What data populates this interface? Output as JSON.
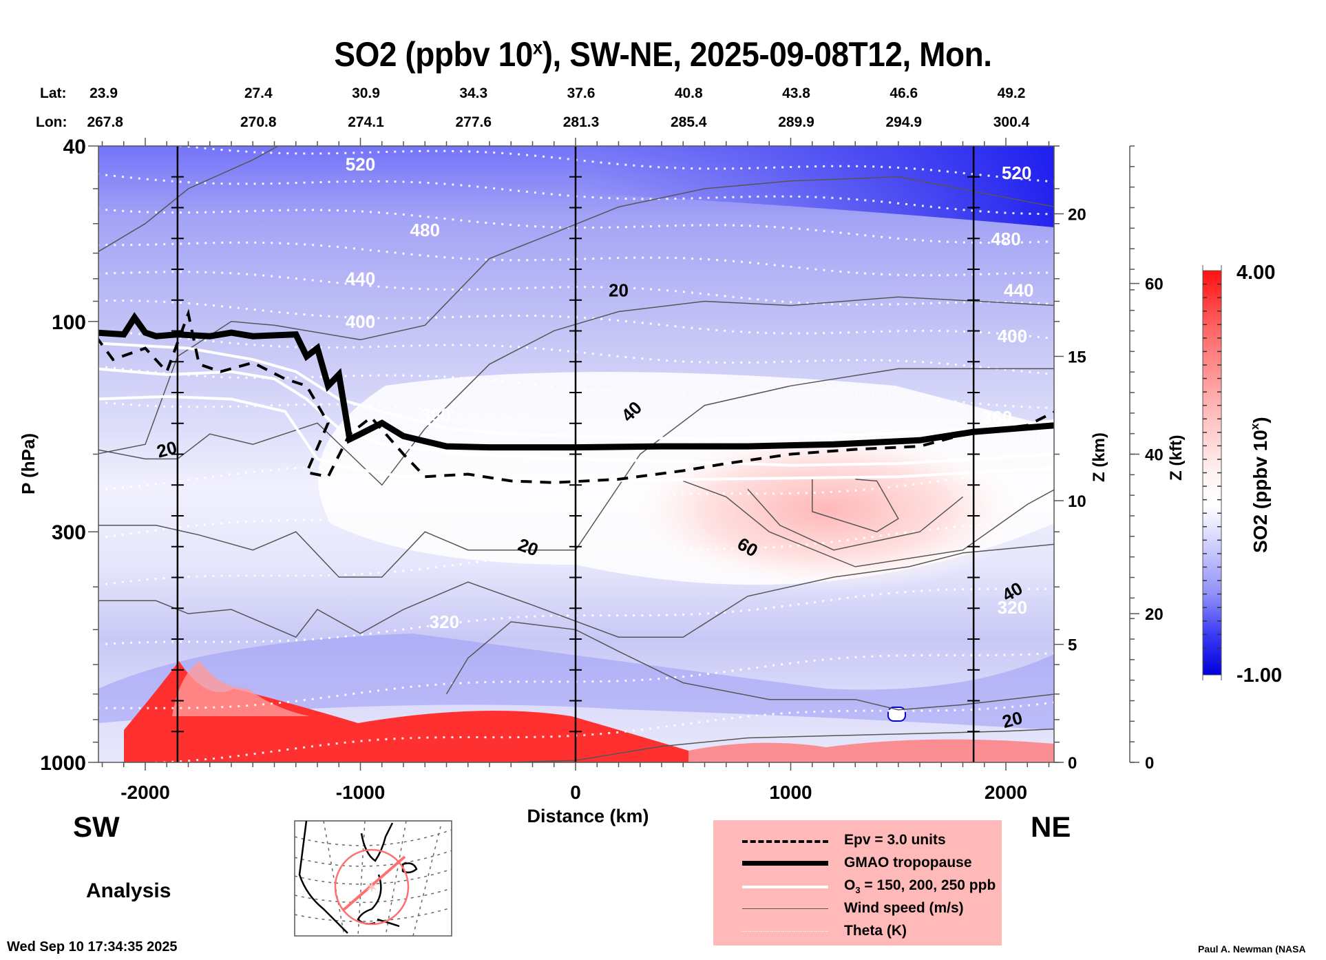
{
  "chart_data": {
    "type": "heatmap",
    "title": "SO2 (ppbv 10",
    "title_sup": "x",
    "title_rest": "), SW-NE, 2025-09-08T12, Mon.",
    "xlabel": "Distance (km)",
    "ylabel": "P (hPa)",
    "xlim": [
      -2230,
      2230
    ],
    "ylim_hpa": [
      1000,
      40
    ],
    "yscale": "log",
    "x_ticks": [
      -2000,
      -1000,
      0,
      1000,
      2000
    ],
    "x_tick_labels": [
      "-2000",
      "-1000",
      "0",
      "1000",
      "2000"
    ],
    "y_ticks": [
      40,
      100,
      300,
      1000
    ],
    "y_tick_labels": [
      "40",
      "100",
      "300",
      "1000"
    ],
    "vertical_lines_km": [
      -1850,
      0,
      1850
    ],
    "location_rows": {
      "lat_label": "Lat:",
      "lon_label": "Lon:",
      "distances_km": [
        -2000,
        -1500,
        -1000,
        -500,
        0,
        500,
        1000,
        1500,
        2000
      ],
      "lat": [
        "23.9",
        "27.4",
        "30.9",
        "34.3",
        "37.6",
        "40.8",
        "43.8",
        "46.6",
        "49.2"
      ],
      "lon": [
        "267.8",
        "270.8",
        "274.1",
        "277.6",
        "281.3",
        "285.4",
        "289.9",
        "294.9",
        "300.4"
      ]
    },
    "right_axis_km": {
      "label": "Z (km)",
      "ticks": [
        0,
        5,
        10,
        15,
        20
      ],
      "tick_pressures_hpa": [
        1000,
        540,
        255,
        120,
        57
      ]
    },
    "right_axis_kft": {
      "label": "Z (kft)",
      "ticks": [
        0,
        20,
        40,
        60
      ],
      "tick_pressures_hpa": [
        1000,
        460,
        200,
        82
      ]
    },
    "colorbar": {
      "label": "SO2 (ppbv 10",
      "label_sup": "x",
      "label_rest": ")",
      "min": -1.0,
      "max": 4.0,
      "min_label": "-1.00",
      "max_label": "4.00",
      "low_color": "#0000dd",
      "mid_color": "#ffffff",
      "high_color": "#ff1010",
      "levels": 30
    },
    "theta_labels": [
      {
        "text": "520",
        "x_km": -1000,
        "p": 44
      },
      {
        "text": "480",
        "x_km": -700,
        "p": 62
      },
      {
        "text": "440",
        "x_km": -1000,
        "p": 80
      },
      {
        "text": "400",
        "x_km": -1000,
        "p": 100
      },
      {
        "text": "360",
        "x_km": -650,
        "p": 163
      },
      {
        "text": "320",
        "x_km": -610,
        "p": 480
      },
      {
        "text": "520",
        "x_km": 2050,
        "p": 46
      },
      {
        "text": "480",
        "x_km": 2000,
        "p": 65
      },
      {
        "text": "440",
        "x_km": 2060,
        "p": 85
      },
      {
        "text": "400",
        "x_km": 2030,
        "p": 108
      },
      {
        "text": "360",
        "x_km": 1960,
        "p": 165
      },
      {
        "text": "320",
        "x_km": 2030,
        "p": 445
      }
    ],
    "wind_labels": [
      {
        "text": "20",
        "x_km": -1900,
        "p": 195,
        "rot": -15
      },
      {
        "text": "20",
        "x_km": 200,
        "p": 85,
        "rot": 0
      },
      {
        "text": "40",
        "x_km": 260,
        "p": 160,
        "rot": -45
      },
      {
        "text": "20",
        "x_km": -220,
        "p": 325,
        "rot": 20
      },
      {
        "text": "60",
        "x_km": 800,
        "p": 325,
        "rot": 30
      },
      {
        "text": "40",
        "x_km": 2030,
        "p": 410,
        "rot": -30
      },
      {
        "text": "20",
        "x_km": 2030,
        "p": 800,
        "rot": -15
      }
    ],
    "tropopause_gmao": [
      [
        -2230,
        106
      ],
      [
        -2100,
        107
      ],
      [
        -2050,
        98
      ],
      [
        -2000,
        106
      ],
      [
        -1950,
        108
      ],
      [
        -1850,
        107
      ],
      [
        -1700,
        108
      ],
      [
        -1600,
        106
      ],
      [
        -1500,
        108
      ],
      [
        -1300,
        107
      ],
      [
        -1250,
        120
      ],
      [
        -1200,
        115
      ],
      [
        -1150,
        140
      ],
      [
        -1100,
        132
      ],
      [
        -1050,
        185
      ],
      [
        -1000,
        180
      ],
      [
        -900,
        170
      ],
      [
        -800,
        182
      ],
      [
        -600,
        192
      ],
      [
        -400,
        193
      ],
      [
        0,
        193
      ],
      [
        400,
        192
      ],
      [
        800,
        192
      ],
      [
        1200,
        190
      ],
      [
        1600,
        186
      ],
      [
        1850,
        178
      ],
      [
        2230,
        172
      ]
    ],
    "epv_3": [
      [
        -2230,
        108
      ],
      [
        -2150,
        122
      ],
      [
        -2000,
        115
      ],
      [
        -1900,
        130
      ],
      [
        -1800,
        96
      ],
      [
        -1750,
        125
      ],
      [
        -1650,
        130
      ],
      [
        -1500,
        124
      ],
      [
        -1350,
        135
      ],
      [
        -1250,
        140
      ],
      [
        -1150,
        170
      ],
      [
        -1250,
        220
      ],
      [
        -1150,
        225
      ],
      [
        -1050,
        180
      ],
      [
        -950,
        165
      ],
      [
        -800,
        200
      ],
      [
        -700,
        225
      ],
      [
        -500,
        222
      ],
      [
        -300,
        230
      ],
      [
        -100,
        232
      ],
      [
        200,
        228
      ],
      [
        500,
        218
      ],
      [
        700,
        210
      ],
      [
        1000,
        200
      ],
      [
        1300,
        195
      ],
      [
        1600,
        192
      ],
      [
        1850,
        178
      ],
      [
        2100,
        172
      ],
      [
        2230,
        160
      ]
    ],
    "o3_contours": [
      [
        [
          -2230,
          112
        ],
        [
          -1800,
          115
        ],
        [
          -1500,
          122
        ],
        [
          -1300,
          130
        ],
        [
          -1100,
          150
        ],
        [
          -900,
          160
        ],
        [
          -600,
          175
        ],
        [
          -300,
          180
        ],
        [
          0,
          182
        ],
        [
          600,
          185
        ],
        [
          1200,
          182
        ],
        [
          1800,
          176
        ],
        [
          2230,
          168
        ]
      ],
      [
        [
          -2230,
          128
        ],
        [
          -1900,
          132
        ],
        [
          -1600,
          130
        ],
        [
          -1400,
          135
        ],
        [
          -1250,
          150
        ],
        [
          -1100,
          175
        ],
        [
          -900,
          190
        ],
        [
          -500,
          200
        ],
        [
          0,
          205
        ],
        [
          500,
          208
        ],
        [
          1000,
          212
        ],
        [
          1500,
          210
        ],
        [
          2230,
          200
        ]
      ],
      [
        [
          -2230,
          150
        ],
        [
          -1900,
          148
        ],
        [
          -1600,
          150
        ],
        [
          -1350,
          160
        ],
        [
          -1200,
          205
        ],
        [
          -1050,
          215
        ],
        [
          -800,
          225
        ],
        [
          -400,
          228
        ],
        [
          0,
          230
        ],
        [
          600,
          228
        ],
        [
          1500,
          225
        ],
        [
          2230,
          215
        ]
      ]
    ],
    "legend": [
      {
        "style": "dashed",
        "label": "Epv = 3.0 units"
      },
      {
        "style": "thick",
        "label": "GMAO tropopause"
      },
      {
        "style": "white",
        "label": "O",
        "label_sub": "3",
        "label_rest": " = 150, 200, 250 ppb"
      },
      {
        "style": "thin",
        "label": "Wind speed (m/s)"
      },
      {
        "style": "dotted",
        "label": "Theta (K)"
      }
    ],
    "direction_left": "SW",
    "direction_right": "NE",
    "analysis_label": "Analysis",
    "inset_map": {
      "description": "North America polar stereographic map with cross-section track",
      "track_color": "#ff7070"
    }
  },
  "footer": {
    "timestamp": "Wed Sep 10 17:34:35 2025",
    "credit": "Paul A. Newman (NASA"
  }
}
